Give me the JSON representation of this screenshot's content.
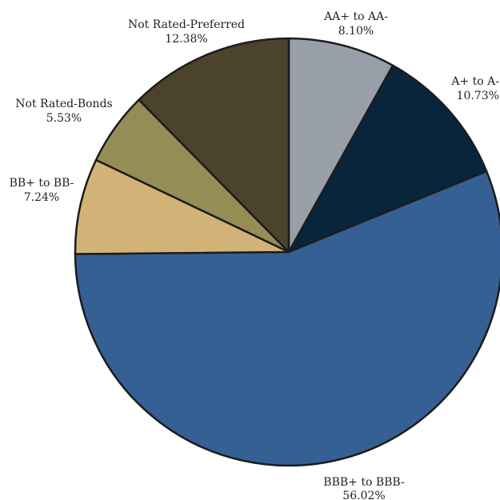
{
  "chart_data": {
    "type": "pie",
    "slices": [
      {
        "label": "AA+ to AA-",
        "value_text": "8.10%",
        "value": 8.1,
        "color": "#989fa8"
      },
      {
        "label": "A+ to A-",
        "value_text": "10.73%",
        "value": 10.73,
        "color": "#08253c"
      },
      {
        "label": "BBB+ to BBB-",
        "value_text": "56.02%",
        "value": 56.02,
        "color": "#346094"
      },
      {
        "label": "BB+ to BB-",
        "value_text": "7.24%",
        "value": 7.24,
        "color": "#d2b377"
      },
      {
        "label": "Not Rated-Bonds",
        "value_text": "5.53%",
        "value": 5.53,
        "color": "#958d55"
      },
      {
        "label": "Not Rated-Preferred",
        "value_text": "12.38%",
        "value": 12.38,
        "color": "#4b432c"
      }
    ],
    "start_angle": "12 o'clock",
    "direction": "clockwise",
    "legend": "none"
  }
}
